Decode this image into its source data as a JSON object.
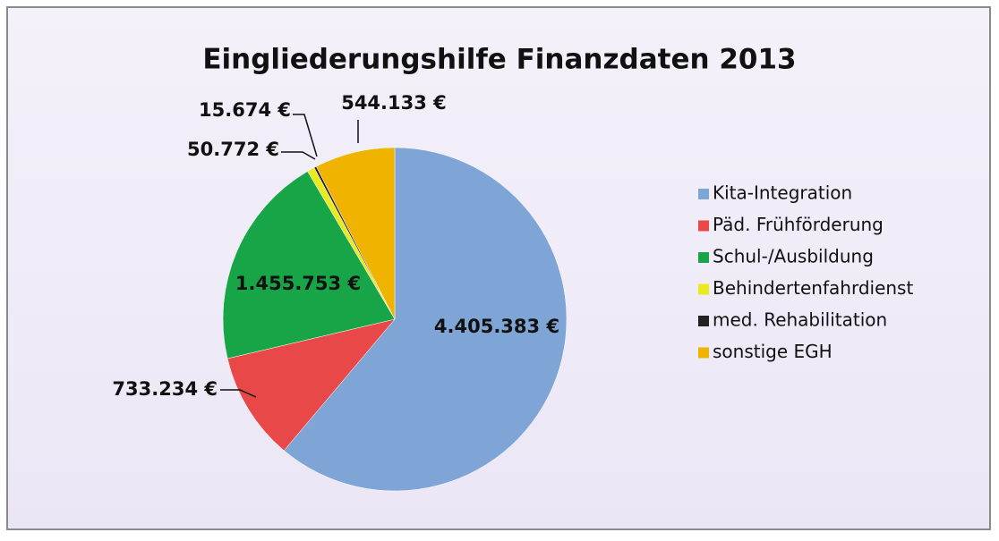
{
  "chart_data": {
    "type": "pie",
    "title": "Eingliederungshilfe  Finanzdaten 2013",
    "categories": [
      "Kita-Integration",
      "Päd. Frühförderung",
      "Schul-/Ausbildung",
      "Behindertenfahrdienst",
      "med. Rehabilitation",
      "sonstige EGH"
    ],
    "values": [
      4405383,
      733234,
      1455753,
      50772,
      15674,
      544133
    ],
    "value_labels": [
      "4.405.383 €",
      "733.234 €",
      "1.455.753 €",
      "50.772 €",
      "15.674 €",
      "544.133 €"
    ],
    "colors": [
      "#7ea5d5",
      "#e84848",
      "#18a548",
      "#eaea20",
      "#222222",
      "#f0b400"
    ],
    "legend": "right"
  }
}
